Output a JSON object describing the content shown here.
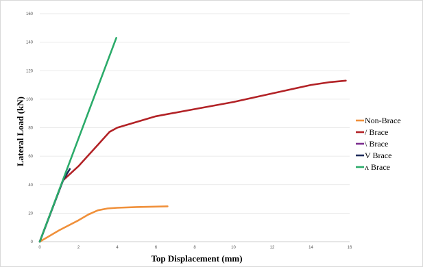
{
  "chart_data": {
    "type": "line",
    "xlabel": "Top Displacement (mm)",
    "ylabel": "Lateral Load (kN)",
    "xlim": [
      0,
      16
    ],
    "ylim": [
      0,
      160
    ],
    "xticks": [
      "0",
      "2",
      "4",
      "6",
      "8",
      "10",
      "12",
      "14",
      "16"
    ],
    "yticks": [
      "0",
      "20",
      "40",
      "60",
      "80",
      "100",
      "120",
      "140",
      "160"
    ],
    "grid": "horizontal",
    "legend_position": "right",
    "series": [
      {
        "name": "Non-Brace",
        "color": "#f0903a",
        "x": [
          0,
          1,
          2,
          2.5,
          3,
          3.5,
          4,
          5,
          6,
          6.6
        ],
        "y": [
          0,
          8,
          15,
          19,
          22,
          23.3,
          23.8,
          24.3,
          24.6,
          24.8
        ]
      },
      {
        "name": "/ Brace",
        "color": "#b22226",
        "x": [
          0,
          1.2,
          2,
          3,
          3.6,
          4,
          6,
          8,
          10,
          12,
          14,
          15,
          15.8
        ],
        "y": [
          0,
          43,
          53,
          68,
          77,
          80,
          88,
          93,
          98,
          104,
          110,
          112,
          113
        ]
      },
      {
        "name": "\\ Brace",
        "color": "#7b2d8e",
        "x": [
          0,
          1.2
        ],
        "y": [
          0,
          43
        ]
      },
      {
        "name": "V Brace",
        "color": "#1f2d5c",
        "x": [
          0,
          1.2,
          1.55
        ],
        "y": [
          0,
          43,
          51
        ]
      },
      {
        "name": "ʌ Brace",
        "color": "#2bab6a",
        "x": [
          0,
          3.95
        ],
        "y": [
          0,
          143
        ]
      }
    ]
  }
}
